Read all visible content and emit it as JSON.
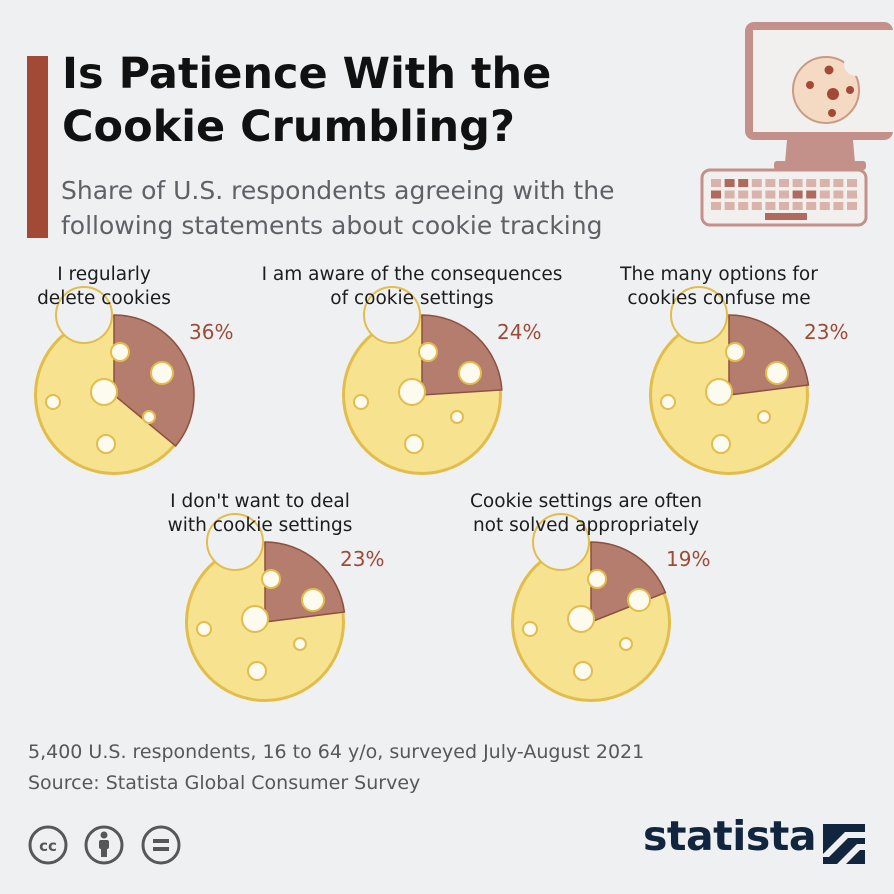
{
  "header": {
    "title_line1": "Is Patience With the",
    "title_line2": "Cookie Crumbling?",
    "subtitle_line1": "Share of U.S. respondents agreeing with the",
    "subtitle_line2": "following statements about cookie tracking"
  },
  "chart_data": {
    "type": "pie",
    "unit": "%",
    "items": [
      {
        "label_lines": [
          "I regularly",
          "delete cookies"
        ],
        "value": 36,
        "value_label": "36%"
      },
      {
        "label_lines": [
          "I am aware of the consequences",
          "of cookie settings"
        ],
        "value": 24,
        "value_label": "24%"
      },
      {
        "label_lines": [
          "The many options for",
          "cookies confuse me"
        ],
        "value": 23,
        "value_label": "23%"
      },
      {
        "label_lines": [
          "I don't want to deal",
          "with cookie settings"
        ],
        "value": 23,
        "value_label": "23%"
      },
      {
        "label_lines": [
          "Cookie settings are often",
          "not solved appropriately"
        ],
        "value": 19,
        "value_label": "19%"
      }
    ],
    "colors": {
      "cookie": "#f6e28f",
      "cookie_edge": "#e3bd4a",
      "slice": "#b57d6e",
      "slice_edge": "#8d4f3e",
      "value_text": "#9c4b37"
    }
  },
  "footer": {
    "note": "5,400 U.S. respondents, 16 to 64 y/o, surveyed July-August 2021",
    "source": "Source: Statista Global Consumer Survey",
    "brand": "statista"
  },
  "icons": [
    "computer-cookie-icon",
    "cc-icon",
    "attribution-icon",
    "no-derivatives-icon",
    "statista-logo-icon"
  ],
  "colors": {
    "accent": "#a24a35",
    "background": "#eef0f2",
    "brand": "#12253f"
  }
}
